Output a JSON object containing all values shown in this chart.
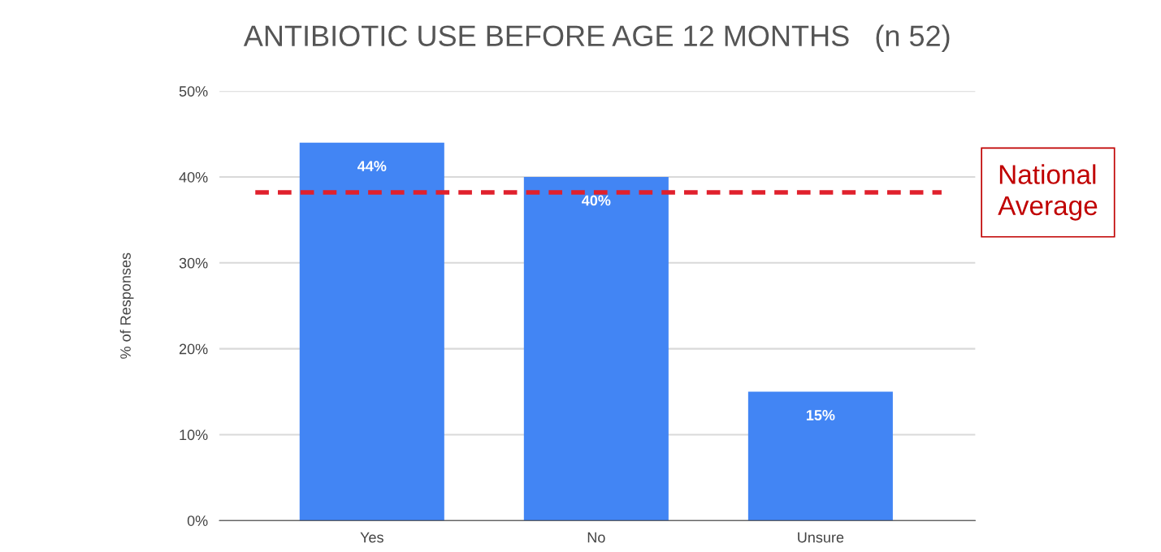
{
  "chart_data": {
    "type": "bar",
    "title": "ANTIBIOTIC USE BEFORE AGE 12 MONTHS   (n 52)",
    "ylabel": "% of Responses",
    "categories": [
      "Yes",
      "No",
      "Unsure"
    ],
    "values": [
      44,
      40,
      15
    ],
    "value_labels": [
      "44%",
      "40%",
      "15%"
    ],
    "color": "#4285f4",
    "ylim": [
      0,
      50
    ],
    "yticks": [
      {
        "value": 0,
        "label": "0%"
      },
      {
        "value": 10,
        "label": "10%"
      },
      {
        "value": 20,
        "label": "20%"
      },
      {
        "value": 30,
        "label": "30%"
      },
      {
        "value": 40,
        "label": "40%"
      },
      {
        "value": 50,
        "label": "50%"
      }
    ],
    "grid": "y",
    "ref_lines": [
      {
        "axis": "y",
        "value": 38.2,
        "label": "National\nAverage",
        "color": "#e0202c",
        "line_style": "dashed"
      }
    ]
  }
}
